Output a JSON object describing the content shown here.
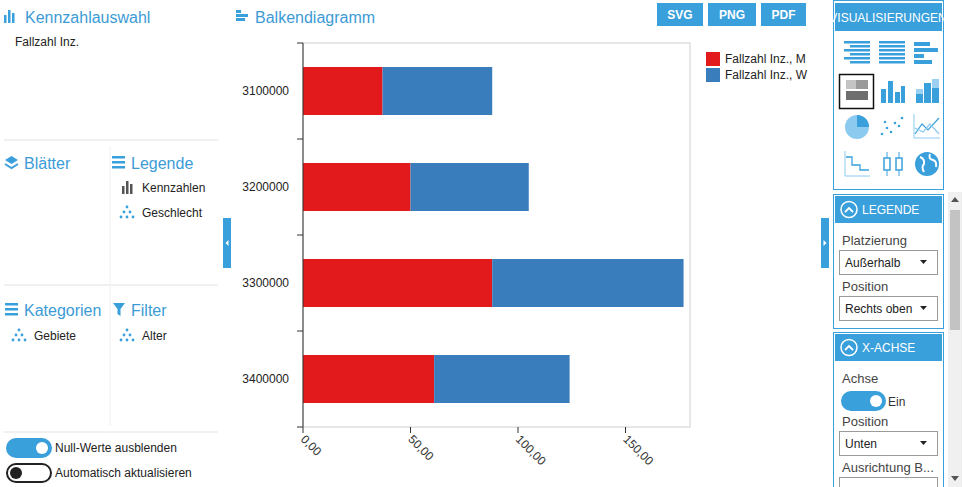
{
  "sidebar": {
    "measure_title": "Kennzahlauswahl",
    "measure": "Fallzahl Inz.",
    "sheets_title": "Blätter",
    "legend_title": "Legende",
    "legend_items": [
      "Kennzahlen",
      "Geschlecht"
    ],
    "categories_title": "Kategorien",
    "categories_items": [
      "Gebiete"
    ],
    "filter_title": "Filter",
    "filter_items": [
      "Alter"
    ],
    "toggles": [
      {
        "label": "Null-Werte ausblenden",
        "on": true
      },
      {
        "label": "Automatisch aktualisieren",
        "on": false
      }
    ]
  },
  "toolbar": {
    "buttons": [
      "SVG",
      "PNG",
      "PDF"
    ]
  },
  "panel": {
    "title": "VISUALISIERUNGEN",
    "sections": [
      {
        "title": "LEGENDE",
        "fields": [
          {
            "label": "Platzierung",
            "value": "Außerhalb"
          },
          {
            "label": "Position",
            "value": "Rechts oben"
          }
        ]
      },
      {
        "title": "X-ACHSE",
        "fields": [
          {
            "label": "Achse",
            "switch": true,
            "value": "Ein"
          },
          {
            "label": "Position",
            "value": "Unten"
          },
          {
            "label": "Ausrichtung B..."
          }
        ]
      }
    ]
  },
  "chart_data": {
    "type": "bar",
    "title": "Balkendiagramm",
    "orientation": "horizontal",
    "stacked": true,
    "legend": "top-right",
    "grid": false,
    "categories": [
      "3100000",
      "3200000",
      "3300000",
      "3400000"
    ],
    "series": [
      {
        "name": "Fallzahl Inz., M",
        "color": "#e31a1c",
        "values": [
          37,
          50,
          88,
          61
        ]
      },
      {
        "name": "Fallzahl Inz., W",
        "color": "#3a7dbd",
        "values": [
          51,
          55,
          89,
          63
        ]
      }
    ],
    "xlim": [
      0,
      180
    ],
    "xticks": [
      {
        "value": 0,
        "label": "0,00"
      },
      {
        "value": 50,
        "label": "50,00"
      },
      {
        "value": 100,
        "label": "100,00"
      },
      {
        "value": 150,
        "label": "150,00"
      }
    ]
  }
}
